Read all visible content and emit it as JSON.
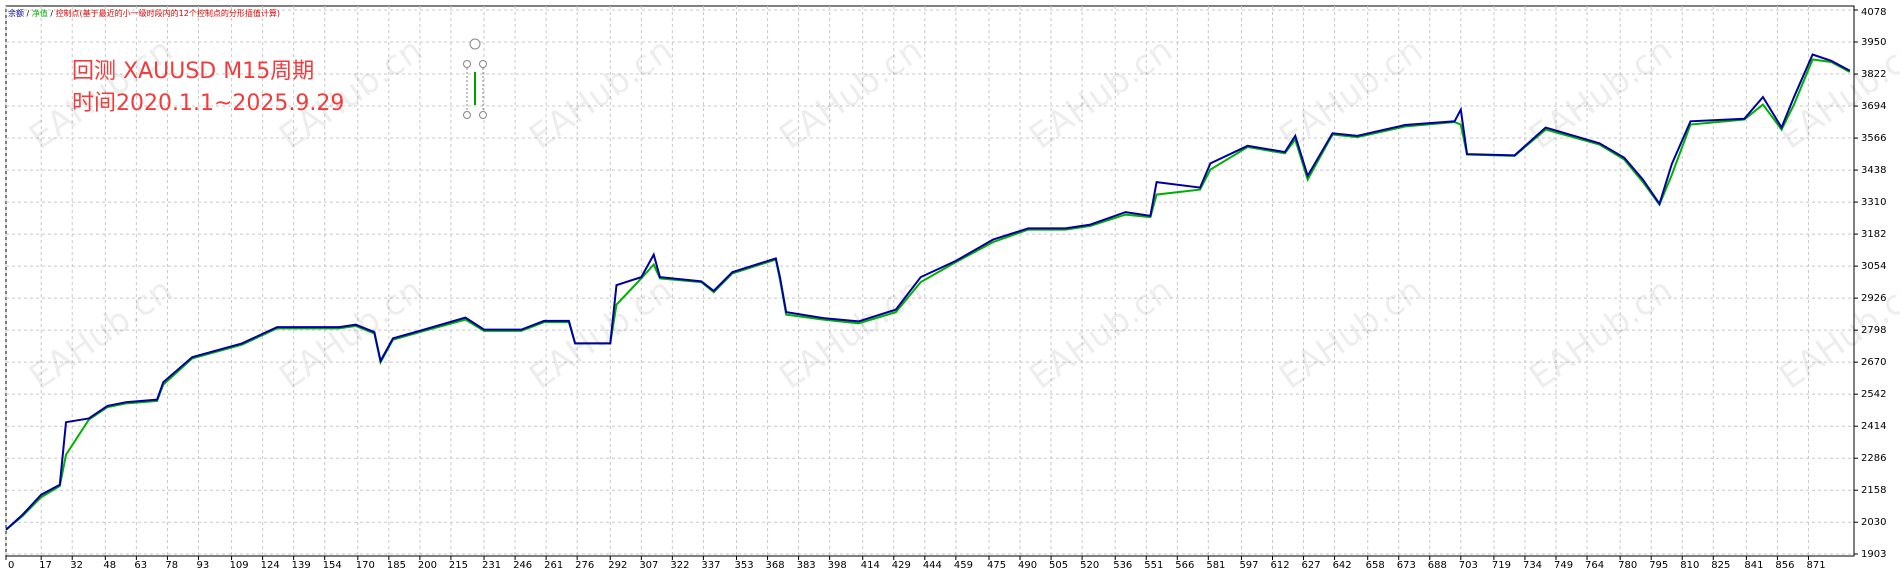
{
  "chart_data": {
    "type": "line",
    "legend_note": "控制点(基于最近的小一级时段内的12个控制点的分形插值计算)",
    "annotations": [
      "回测 XAUUSD M15周期",
      "时间2020.1.1~2025.9.29"
    ],
    "watermark": "EAHub.cn",
    "grid": true,
    "xlim": [
      0,
      893
    ],
    "ylim": [
      1903,
      4078
    ],
    "xticks": [
      0,
      17,
      32,
      48,
      63,
      78,
      93,
      109,
      124,
      139,
      154,
      170,
      185,
      200,
      215,
      231,
      246,
      261,
      276,
      292,
      307,
      322,
      337,
      353,
      368,
      383,
      398,
      414,
      429,
      444,
      459,
      475,
      490,
      505,
      520,
      536,
      551,
      566,
      581,
      597,
      612,
      627,
      642,
      658,
      673,
      688,
      703,
      719,
      734,
      749,
      764,
      780,
      795,
      810,
      825,
      841,
      856,
      871
    ],
    "yticks": [
      1903,
      2030,
      2158,
      2286,
      2414,
      2542,
      2670,
      2798,
      2926,
      3054,
      3182,
      3310,
      3438,
      3566,
      3694,
      3822,
      3950,
      4078
    ],
    "x": [
      0,
      8,
      17,
      26,
      29,
      40,
      49,
      58,
      73,
      76,
      90,
      114,
      131,
      161,
      169,
      178,
      181,
      187,
      202,
      222,
      231,
      249,
      260,
      272,
      275,
      292,
      295,
      307,
      313,
      316,
      336,
      342,
      351,
      372,
      374,
      377,
      395,
      412,
      430,
      442,
      459,
      477,
      494,
      512,
      524,
      541,
      553,
      556,
      577,
      582,
      600,
      618,
      623,
      629,
      641,
      653,
      676,
      700,
      703,
      706,
      729,
      744,
      770,
      782,
      791,
      799,
      805,
      814,
      840,
      849,
      858,
      864,
      873,
      882,
      891
    ],
    "series": [
      {
        "name": "余额",
        "color": "#0000a0",
        "values": [
          2000,
          2060,
          2140,
          2180,
          2430,
          2445,
          2495,
          2510,
          2520,
          2590,
          2690,
          2745,
          2810,
          2810,
          2820,
          2790,
          2675,
          2765,
          2800,
          2848,
          2800,
          2800,
          2835,
          2835,
          2745,
          2745,
          2978,
          3010,
          3100,
          3010,
          2993,
          2955,
          3030,
          3085,
          3010,
          2870,
          2846,
          2833,
          2880,
          3010,
          3075,
          3160,
          3205,
          3205,
          3220,
          3270,
          3255,
          3390,
          3368,
          3465,
          3535,
          3510,
          3575,
          3415,
          3585,
          3575,
          3618,
          3633,
          3680,
          3502,
          3497,
          3608,
          3545,
          3487,
          3400,
          3303,
          3463,
          3633,
          3643,
          3730,
          3608,
          3730,
          3900,
          3875,
          3835
        ]
      },
      {
        "name": "净值",
        "color": "#00b000",
        "values": [
          2000,
          2055,
          2130,
          2175,
          2300,
          2440,
          2490,
          2505,
          2515,
          2580,
          2685,
          2740,
          2805,
          2805,
          2815,
          2785,
          2670,
          2760,
          2795,
          2840,
          2795,
          2795,
          2830,
          2830,
          2745,
          2745,
          2900,
          3005,
          3060,
          3005,
          2990,
          2950,
          3025,
          3080,
          3000,
          2860,
          2840,
          2825,
          2870,
          2990,
          3070,
          3150,
          3200,
          3200,
          3215,
          3260,
          3250,
          3340,
          3360,
          3440,
          3530,
          3505,
          3560,
          3400,
          3580,
          3570,
          3612,
          3630,
          3620,
          3500,
          3495,
          3600,
          3540,
          3480,
          3390,
          3300,
          3420,
          3620,
          3640,
          3700,
          3600,
          3700,
          3880,
          3870,
          3830
        ]
      }
    ]
  }
}
